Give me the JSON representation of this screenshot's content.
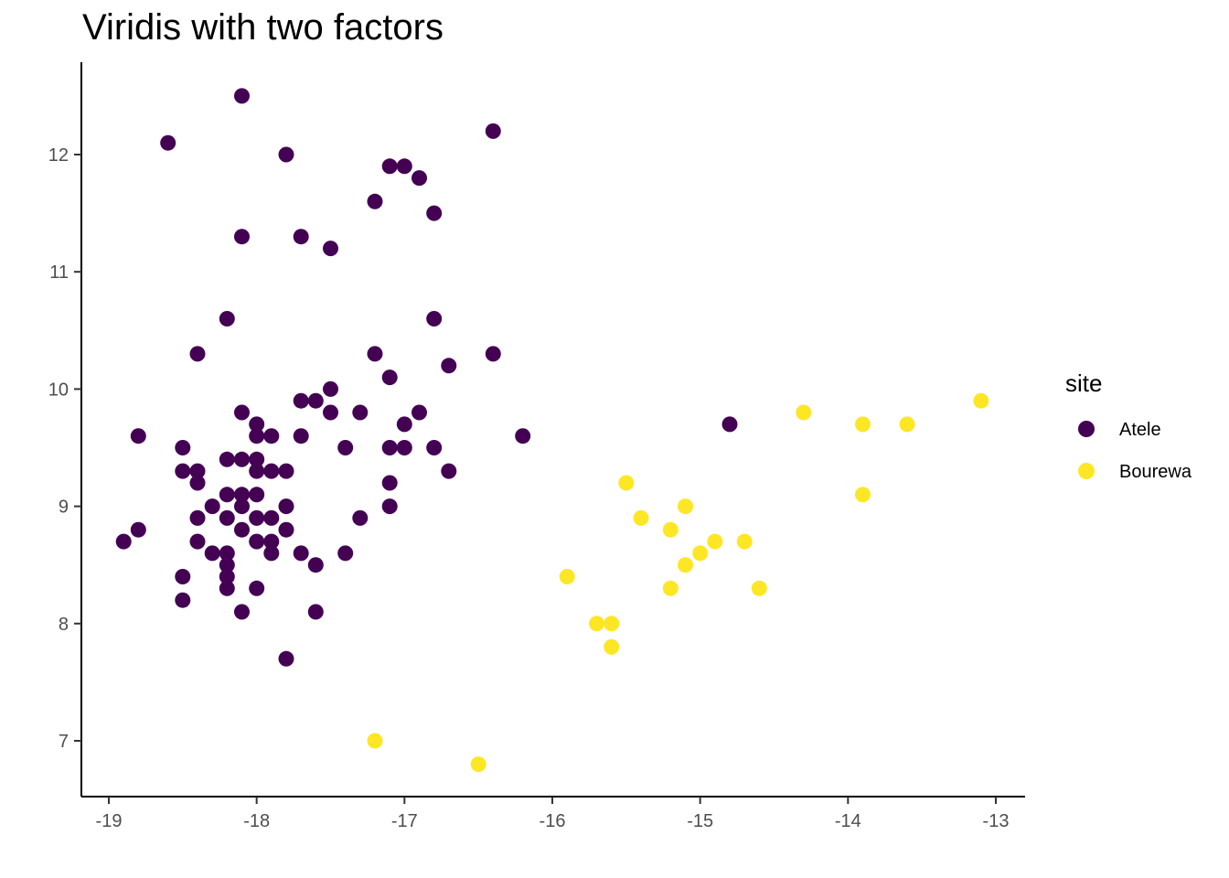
{
  "chart_data": {
    "type": "scatter",
    "title": "Viridis with two factors",
    "xlabel": "",
    "ylabel": "",
    "xlim": [
      -19.2,
      -12.8
    ],
    "ylim": [
      6.55,
      12.8
    ],
    "x_ticks": [
      -19,
      -18,
      -17,
      -16,
      -15,
      -14,
      -13
    ],
    "y_ticks": [
      7,
      8,
      9,
      10,
      11,
      12
    ],
    "grid": false,
    "legend": {
      "title": "site",
      "placement": "right"
    },
    "series": [
      {
        "name": "Atele",
        "color": "#440154",
        "points": [
          [
            -18.1,
            12.5
          ],
          [
            -18.6,
            12.1
          ],
          [
            -17.8,
            12.0
          ],
          [
            -16.4,
            12.2
          ],
          [
            -17.1,
            11.9
          ],
          [
            -17.0,
            11.9
          ],
          [
            -16.9,
            11.8
          ],
          [
            -17.2,
            11.6
          ],
          [
            -16.8,
            11.5
          ],
          [
            -18.1,
            11.3
          ],
          [
            -17.7,
            11.3
          ],
          [
            -17.5,
            11.2
          ],
          [
            -18.2,
            10.6
          ],
          [
            -16.8,
            10.6
          ],
          [
            -18.4,
            10.3
          ],
          [
            -17.2,
            10.3
          ],
          [
            -16.4,
            10.3
          ],
          [
            -16.7,
            10.2
          ],
          [
            -17.1,
            10.1
          ],
          [
            -17.5,
            10.0
          ],
          [
            -17.7,
            9.9
          ],
          [
            -17.6,
            9.9
          ],
          [
            -18.1,
            9.8
          ],
          [
            -17.5,
            9.8
          ],
          [
            -17.3,
            9.8
          ],
          [
            -16.9,
            9.8
          ],
          [
            -18.0,
            9.7
          ],
          [
            -17.0,
            9.7
          ],
          [
            -14.8,
            9.7
          ],
          [
            -18.8,
            9.6
          ],
          [
            -18.0,
            9.6
          ],
          [
            -17.9,
            9.6
          ],
          [
            -17.7,
            9.6
          ],
          [
            -16.2,
            9.6
          ],
          [
            -18.5,
            9.5
          ],
          [
            -17.4,
            9.5
          ],
          [
            -17.1,
            9.5
          ],
          [
            -17.0,
            9.5
          ],
          [
            -16.8,
            9.5
          ],
          [
            -18.2,
            9.4
          ],
          [
            -18.1,
            9.4
          ],
          [
            -18.0,
            9.4
          ],
          [
            -18.5,
            9.3
          ],
          [
            -18.4,
            9.3
          ],
          [
            -18.0,
            9.3
          ],
          [
            -17.9,
            9.3
          ],
          [
            -17.8,
            9.3
          ],
          [
            -16.7,
            9.3
          ],
          [
            -18.4,
            9.2
          ],
          [
            -17.1,
            9.2
          ],
          [
            -18.2,
            9.1
          ],
          [
            -18.1,
            9.1
          ],
          [
            -18.0,
            9.1
          ],
          [
            -18.3,
            9.0
          ],
          [
            -18.1,
            9.0
          ],
          [
            -17.8,
            9.0
          ],
          [
            -17.1,
            9.0
          ],
          [
            -18.4,
            8.9
          ],
          [
            -18.2,
            8.9
          ],
          [
            -18.0,
            8.9
          ],
          [
            -17.9,
            8.9
          ],
          [
            -17.3,
            8.9
          ],
          [
            -18.8,
            8.8
          ],
          [
            -18.1,
            8.8
          ],
          [
            -17.8,
            8.8
          ],
          [
            -18.9,
            8.7
          ],
          [
            -18.4,
            8.7
          ],
          [
            -18.0,
            8.7
          ],
          [
            -17.9,
            8.7
          ],
          [
            -18.3,
            8.6
          ],
          [
            -18.2,
            8.6
          ],
          [
            -17.9,
            8.6
          ],
          [
            -17.7,
            8.6
          ],
          [
            -17.4,
            8.6
          ],
          [
            -18.2,
            8.5
          ],
          [
            -17.6,
            8.5
          ],
          [
            -18.5,
            8.4
          ],
          [
            -18.2,
            8.4
          ],
          [
            -18.2,
            8.3
          ],
          [
            -18.0,
            8.3
          ],
          [
            -18.5,
            8.2
          ],
          [
            -18.1,
            8.1
          ],
          [
            -17.6,
            8.1
          ],
          [
            -17.8,
            7.7
          ]
        ]
      },
      {
        "name": "Bourewa",
        "color": "#FDE725",
        "points": [
          [
            -13.1,
            9.9
          ],
          [
            -14.3,
            9.8
          ],
          [
            -13.9,
            9.7
          ],
          [
            -13.6,
            9.7
          ],
          [
            -15.5,
            9.2
          ],
          [
            -13.9,
            9.1
          ],
          [
            -15.1,
            9.0
          ],
          [
            -15.4,
            8.9
          ],
          [
            -15.2,
            8.8
          ],
          [
            -14.9,
            8.7
          ],
          [
            -14.7,
            8.7
          ],
          [
            -15.0,
            8.6
          ],
          [
            -15.1,
            8.5
          ],
          [
            -15.9,
            8.4
          ],
          [
            -15.2,
            8.3
          ],
          [
            -14.6,
            8.3
          ],
          [
            -15.7,
            8.0
          ],
          [
            -15.6,
            8.0
          ],
          [
            -15.6,
            7.8
          ],
          [
            -17.2,
            7.0
          ],
          [
            -16.5,
            6.8
          ]
        ]
      }
    ]
  }
}
